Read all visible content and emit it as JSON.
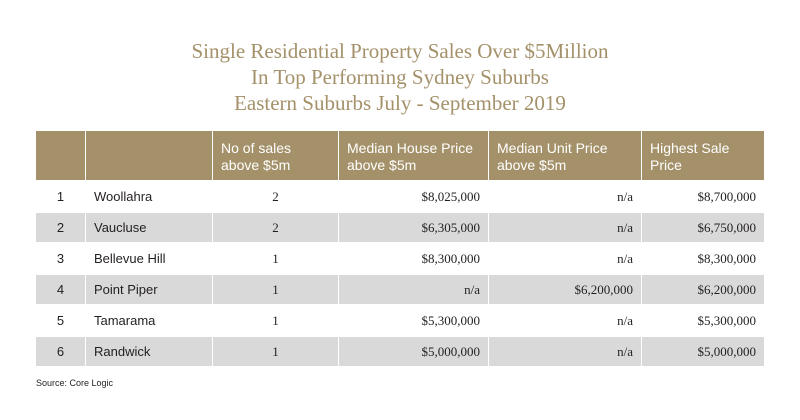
{
  "title": {
    "line1": "Single Residential Property Sales Over $5Million",
    "line2": "In Top Performing Sydney Suburbs",
    "line3": "Eastern Suburbs July - September 2019"
  },
  "table": {
    "headers": [
      "",
      "",
      "No of sales above $5m",
      "Median House Price above $5m",
      "Median Unit Price above $5m",
      "Highest Sale Price"
    ],
    "rows": [
      {
        "rank": "1",
        "suburb": "Woollahra",
        "sales": "2",
        "median_house": "$8,025,000",
        "median_unit": "n/a",
        "highest": "$8,700,000"
      },
      {
        "rank": "2",
        "suburb": "Vaucluse",
        "sales": "2",
        "median_house": "$6,305,000",
        "median_unit": "n/a",
        "highest": "$6,750,000"
      },
      {
        "rank": "3",
        "suburb": "Bellevue Hill",
        "sales": "1",
        "median_house": "$8,300,000",
        "median_unit": "n/a",
        "highest": "$8,300,000"
      },
      {
        "rank": "4",
        "suburb": "Point Piper",
        "sales": "1",
        "median_house": "n/a",
        "median_unit": "$6,200,000",
        "highest": "$6,200,000"
      },
      {
        "rank": "5",
        "suburb": "Tamarama",
        "sales": "1",
        "median_house": "$5,300,000",
        "median_unit": "n/a",
        "highest": "$5,300,000"
      },
      {
        "rank": "6",
        "suburb": "Randwick",
        "sales": "1",
        "median_house": "$5,000,000",
        "median_unit": "n/a",
        "highest": "$5,000,000"
      }
    ]
  },
  "source": "Source: Core Logic",
  "colors": {
    "accent": "#a4916a",
    "shaded_row": "#d9d9da"
  }
}
